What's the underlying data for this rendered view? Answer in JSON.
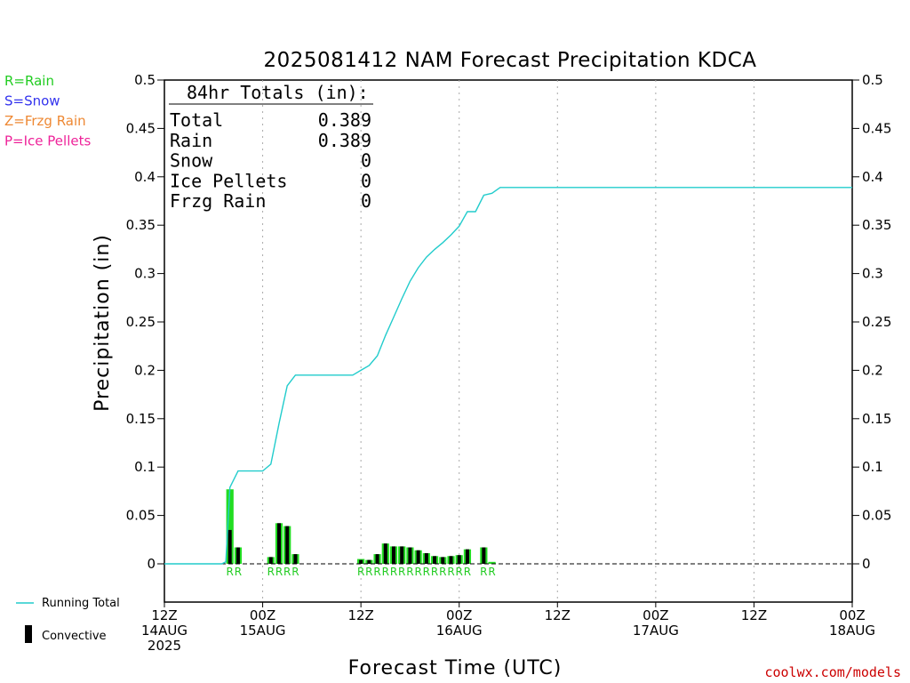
{
  "chart_data": {
    "type": "bar",
    "title": "2025081412 NAM Forecast Precipitation KDCA",
    "xlabel": "Forecast Time (UTC)",
    "ylabel": "Precipitation (in)",
    "ylim": [
      -0.04,
      0.5
    ],
    "y_ticks": [
      "0.5",
      "0.45",
      "0.4",
      "0.35",
      "0.3",
      "0.25",
      "0.2",
      "0.15",
      "0.1",
      "0.05",
      "0"
    ],
    "xlim_hours": [
      0,
      84
    ],
    "x_ticks": [
      {
        "hour": 0,
        "lines": [
          "12Z",
          "14AUG",
          "2025"
        ]
      },
      {
        "hour": 12,
        "lines": [
          "00Z",
          "15AUG"
        ]
      },
      {
        "hour": 24,
        "lines": [
          "12Z",
          ""
        ]
      },
      {
        "hour": 36,
        "lines": [
          "00Z",
          "16AUG"
        ]
      },
      {
        "hour": 48,
        "lines": [
          "12Z",
          ""
        ]
      },
      {
        "hour": 60,
        "lines": [
          "00Z",
          "17AUG"
        ]
      },
      {
        "hour": 72,
        "lines": [
          "12Z",
          ""
        ]
      },
      {
        "hour": 84,
        "lines": [
          "00Z",
          "18AUG"
        ]
      }
    ],
    "grid": "vertical dotted at 12h",
    "precip_type_legend": [
      {
        "text": "R=Rain",
        "color": "#22cc22"
      },
      {
        "text": "S=Snow",
        "color": "#3333ee"
      },
      {
        "text": "Z=Frzg Rain",
        "color": "#ee8833"
      },
      {
        "text": "P=Ice Pellets",
        "color": "#ee2299"
      }
    ],
    "totals_header": "84hr Totals (in):",
    "totals": [
      {
        "label": "Total",
        "value": "0.389"
      },
      {
        "label": "Rain",
        "value": "0.389"
      },
      {
        "label": "Snow",
        "value": "0"
      },
      {
        "label": "Ice Pellets",
        "value": "0"
      },
      {
        "label": "Frzg Rain",
        "value": "0"
      }
    ],
    "series_legend": {
      "running_total": "Running Total",
      "convective": "Convective"
    },
    "bars": [
      {
        "hour": 8,
        "total": 0.077,
        "convective": 0.035,
        "type": "R"
      },
      {
        "hour": 9,
        "total": 0.017,
        "convective": 0.017,
        "type": "R"
      },
      {
        "hour": 13,
        "total": 0.007,
        "convective": 0.007,
        "type": "R"
      },
      {
        "hour": 14,
        "total": 0.042,
        "convective": 0.042,
        "type": "R"
      },
      {
        "hour": 15,
        "total": 0.039,
        "convective": 0.039,
        "type": "R"
      },
      {
        "hour": 16,
        "total": 0.01,
        "convective": 0.01,
        "type": "R"
      },
      {
        "hour": 24,
        "total": 0.005,
        "convective": 0.004,
        "type": "R"
      },
      {
        "hour": 25,
        "total": 0.004,
        "convective": 0.004,
        "type": "R"
      },
      {
        "hour": 26,
        "total": 0.01,
        "convective": 0.01,
        "type": "R"
      },
      {
        "hour": 27,
        "total": 0.021,
        "convective": 0.021,
        "type": "R"
      },
      {
        "hour": 28,
        "total": 0.018,
        "convective": 0.018,
        "type": "R"
      },
      {
        "hour": 29,
        "total": 0.018,
        "convective": 0.018,
        "type": "R"
      },
      {
        "hour": 30,
        "total": 0.017,
        "convective": 0.017,
        "type": "R"
      },
      {
        "hour": 31,
        "total": 0.014,
        "convective": 0.014,
        "type": "R"
      },
      {
        "hour": 32,
        "total": 0.011,
        "convective": 0.011,
        "type": "R"
      },
      {
        "hour": 33,
        "total": 0.008,
        "convective": 0.008,
        "type": "R"
      },
      {
        "hour": 34,
        "total": 0.007,
        "convective": 0.007,
        "type": "R"
      },
      {
        "hour": 35,
        "total": 0.008,
        "convective": 0.008,
        "type": "R"
      },
      {
        "hour": 36,
        "total": 0.009,
        "convective": 0.009,
        "type": "R"
      },
      {
        "hour": 37,
        "total": 0.015,
        "convective": 0.015,
        "type": "R"
      },
      {
        "hour": 39,
        "total": 0.017,
        "convective": 0.017,
        "type": "R"
      },
      {
        "hour": 40,
        "total": 0.002,
        "convective": 0.0,
        "type": "R"
      }
    ],
    "running_total": [
      [
        0,
        0
      ],
      [
        7,
        0
      ],
      [
        7.5,
        0.002
      ],
      [
        8,
        0.079
      ],
      [
        9,
        0.096
      ],
      [
        12,
        0.096
      ],
      [
        13,
        0.103
      ],
      [
        14,
        0.145
      ],
      [
        15,
        0.184
      ],
      [
        16,
        0.195
      ],
      [
        23,
        0.195
      ],
      [
        24,
        0.2
      ],
      [
        25,
        0.205
      ],
      [
        26,
        0.215
      ],
      [
        27,
        0.236
      ],
      [
        28,
        0.255
      ],
      [
        29,
        0.274
      ],
      [
        30,
        0.292
      ],
      [
        31,
        0.306
      ],
      [
        32,
        0.317
      ],
      [
        33,
        0.325
      ],
      [
        34,
        0.332
      ],
      [
        35,
        0.34
      ],
      [
        36,
        0.349
      ],
      [
        37,
        0.364
      ],
      [
        38,
        0.364
      ],
      [
        39,
        0.381
      ],
      [
        40,
        0.383
      ],
      [
        41,
        0.389
      ],
      [
        84,
        0.389
      ]
    ],
    "colors": {
      "running_total": "#22cccc",
      "rain_bar": "#22dd22",
      "convective": "#000000",
      "axis": "#000000",
      "grid": "#aaaaaa",
      "credit": "#cc0000"
    }
  },
  "credit": "coolwx.com/models"
}
